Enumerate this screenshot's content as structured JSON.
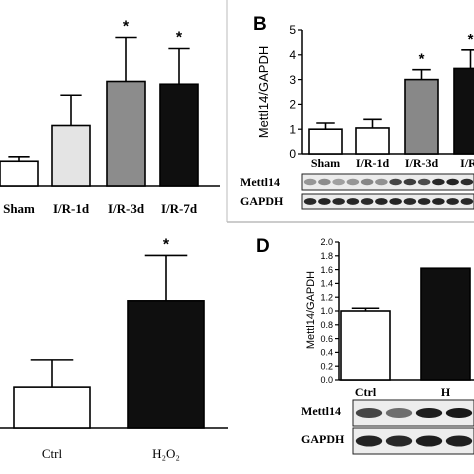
{
  "chart_data": [
    {
      "panel": "",
      "type": "bar",
      "categories": [
        "Sham",
        "I/R-1d",
        "I/R-3d",
        "I/R-7d"
      ],
      "values": [
        0.45,
        1.1,
        1.9,
        1.85
      ],
      "errors": [
        0.08,
        0.55,
        0.8,
        0.65
      ],
      "colors": [
        "#ffffff",
        "#e4e4e4",
        "#8c8c8c",
        "#0f0f0f"
      ],
      "significance": [
        "",
        "",
        "*",
        "*"
      ],
      "ylim": [
        0,
        3.2
      ],
      "xlabel": "",
      "ylabel": "",
      "title": ""
    },
    {
      "panel": "B",
      "type": "bar",
      "categories": [
        "Sham",
        "I/R-1d",
        "I/R-3d",
        "I/R-"
      ],
      "values": [
        1.0,
        1.05,
        3.0,
        3.45
      ],
      "errors": [
        0.25,
        0.35,
        0.4,
        0.75
      ],
      "colors": [
        "#ffffff",
        "#ffffff",
        "#888888",
        "#0f0f0f"
      ],
      "significance": [
        "",
        "",
        "*",
        "*"
      ],
      "yticks": [
        "0",
        "1",
        "2",
        "3",
        "4",
        "5"
      ],
      "ylim": [
        0,
        5
      ],
      "ylabel": "Mettl14/GAPDH",
      "xlabel": "",
      "title": "",
      "blots": [
        "Mettl14",
        "GAPDH"
      ]
    },
    {
      "panel": "",
      "type": "bar",
      "categories": [
        "Ctrl",
        "H₂O₂"
      ],
      "values": [
        0.45,
        1.4
      ],
      "errors": [
        0.3,
        0.5
      ],
      "colors": [
        "#ffffff",
        "#0f0f0f"
      ],
      "significance": [
        "",
        "*"
      ],
      "ylim": [
        0,
        2.4
      ],
      "xlabel": "",
      "ylabel": "",
      "title": ""
    },
    {
      "panel": "D",
      "type": "bar",
      "categories": [
        "Ctrl",
        "H"
      ],
      "values": [
        1.0,
        1.62
      ],
      "errors": [
        0.04,
        0.0
      ],
      "colors": [
        "#ffffff",
        "#0f0f0f"
      ],
      "significance": [
        "",
        ""
      ],
      "yticks": [
        "0.0",
        "0.2",
        "0.4",
        "0.6",
        "0.8",
        "1.0",
        "1.2",
        "1.4",
        "1.6",
        "1.8",
        "2.0"
      ],
      "ylim": [
        0,
        2.0
      ],
      "ylabel": "Mettl14/GAPDH",
      "xlabel": "",
      "title": "",
      "blots": [
        "Mettl14",
        "GAPDH"
      ]
    }
  ]
}
